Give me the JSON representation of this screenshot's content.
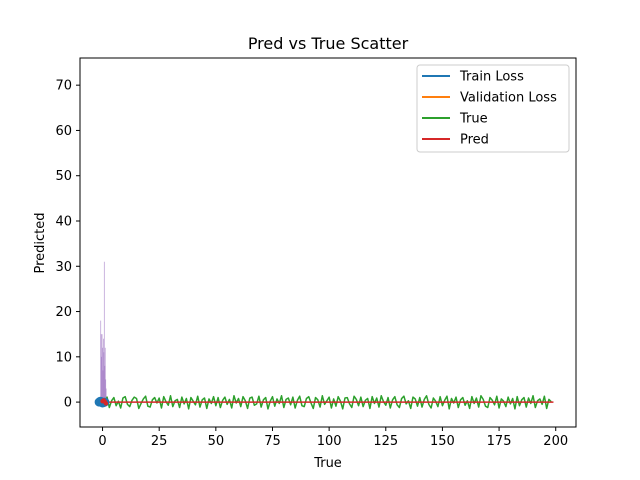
{
  "chart_data": {
    "type": "line",
    "title": "Pred vs True Scatter",
    "xlabel": "True",
    "ylabel": "Predicted",
    "xlim": [
      -9.95,
      208.95
    ],
    "ylim": [
      -5.5,
      76.0
    ],
    "xticks": [
      0,
      25,
      50,
      75,
      100,
      125,
      150,
      175,
      200
    ],
    "yticks": [
      0,
      10,
      20,
      30,
      40,
      50,
      60,
      70
    ],
    "grid": false,
    "legend_position": "upper right",
    "legend": [
      {
        "name": "Train Loss",
        "color": "#1f77b4"
      },
      {
        "name": "Validation Loss",
        "color": "#ff7f0e"
      },
      {
        "name": "True",
        "color": "#2ca02c"
      },
      {
        "name": "Pred",
        "color": "#d62728"
      }
    ],
    "series": [
      {
        "name": "Train Loss",
        "color": "#1f77b4",
        "x": [
          0,
          1,
          2
        ],
        "y": [
          0.02,
          0.01,
          0.01
        ]
      },
      {
        "name": "Validation Loss",
        "color": "#ff7f0e",
        "x": [
          0,
          1,
          2
        ],
        "y": [
          0.05,
          0.03,
          0.02
        ]
      },
      {
        "name": "True",
        "color": "#2ca02c",
        "x_start": 0,
        "x_step": 1,
        "y": [
          0.6,
          -0.4,
          1.1,
          -1.2,
          0.3,
          1.0,
          -0.8,
          0.2,
          -1.3,
          0.9,
          1.2,
          -0.5,
          -1.0,
          0.4,
          1.1,
          0.8,
          -1.4,
          -0.3,
          0.7,
          1.3,
          -0.9,
          -1.1,
          0.5,
          1.0,
          -0.2,
          0.9,
          -1.3,
          1.2,
          0.1,
          -0.7,
          1.4,
          -1.0,
          0.3,
          0.6,
          -1.2,
          1.1,
          -0.4,
          0.8,
          -1.5,
          1.0,
          0.2,
          -0.6,
          1.3,
          -1.1,
          0.5,
          0.9,
          -1.4,
          0.7,
          -0.3,
          1.2,
          -0.8,
          1.0,
          -1.2,
          0.4,
          1.1,
          -0.5,
          0.6,
          -1.3,
          1.4,
          -0.2,
          0.8,
          -1.0,
          1.2,
          0.3,
          -1.4,
          0.9,
          1.1,
          -0.7,
          -0.4,
          1.3,
          -1.1,
          0.5,
          1.0,
          -1.5,
          0.2,
          1.2,
          -0.9,
          0.7,
          -0.3,
          1.4,
          -1.2,
          0.6,
          0.9,
          -0.6,
          1.1,
          -1.3,
          0.4,
          1.3,
          -0.8,
          -1.0,
          0.8,
          1.2,
          -0.2,
          -1.4,
          1.0,
          0.5,
          -1.1,
          1.4,
          -0.5,
          0.3,
          1.1,
          -1.3,
          0.7,
          -0.9,
          1.2,
          0.2,
          -1.5,
          0.9,
          1.0,
          -0.4,
          -1.2,
          1.3,
          0.6,
          -0.8,
          1.1,
          -1.0,
          0.4,
          0.8,
          -1.4,
          1.2,
          -0.3,
          0.9,
          -1.1,
          1.4,
          0.1,
          -0.7,
          1.0,
          -1.3,
          0.5,
          1.2,
          -0.6,
          -1.2,
          0.8,
          1.3,
          -0.4,
          0.3,
          -1.4,
          1.1,
          0.7,
          -0.9,
          1.0,
          -1.1,
          0.6,
          1.4,
          -0.5,
          -1.3,
          0.9,
          0.2,
          -1.0,
          1.2,
          -0.8,
          0.4,
          1.3,
          -1.5,
          0.8,
          -0.2,
          1.1,
          -1.2,
          0.5,
          1.0,
          -0.7,
          0.3,
          -1.4,
          1.2,
          -0.3,
          0.9,
          -1.1,
          1.4,
          0.6,
          -0.9,
          -1.2,
          1.0,
          0.4,
          -0.6,
          1.3,
          -1.3,
          0.7,
          0.2,
          -1.0,
          1.1,
          -0.4,
          0.8,
          -1.5,
          1.2,
          -0.8,
          0.5,
          1.0,
          -1.1,
          0.9,
          -0.3,
          1.4,
          -1.2,
          0.3,
          0.7,
          -0.5,
          1.3,
          -1.4,
          0.6,
          0.1
        ]
      },
      {
        "name": "Pred",
        "color": "#d62728",
        "x_start": 0,
        "x_step": 1,
        "constant_y": 0.0,
        "count": 200
      }
    ],
    "scatter": {
      "color": "#1f77b4",
      "x": [
        -1.5,
        -0.5,
        0.5,
        1.0,
        -1.0,
        0.0
      ],
      "y": [
        0.0,
        0.1,
        -0.1,
        0.0,
        0.2,
        -0.2
      ]
    },
    "scatter_red": {
      "color": "#d62728",
      "x": [
        0.0,
        0.5,
        1.0,
        1.5
      ],
      "y": [
        0.2,
        0.4,
        0.1,
        -0.3
      ]
    },
    "histogram": {
      "color": "#9467bd",
      "opacity": 0.6,
      "x": [
        -0.9,
        -0.7,
        -0.5,
        -0.3,
        -0.1,
        0.1,
        0.3,
        0.5,
        0.7,
        0.9,
        1.1,
        1.3,
        1.5
      ],
      "counts": [
        18,
        15,
        10,
        15,
        12,
        7,
        14,
        11,
        31,
        8,
        12,
        5,
        3
      ]
    }
  }
}
